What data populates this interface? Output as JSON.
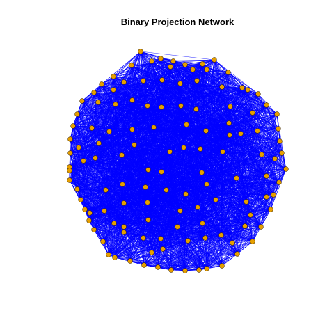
{
  "title": "Binary Projection Network",
  "colors": {
    "background": "#ffffff",
    "edge": "#0000ff",
    "node_fill": "#e69f00",
    "node_stroke": "#4a3000"
  },
  "chart_data": {
    "type": "network",
    "title": "Binary Projection Network",
    "node_count": 110,
    "edge_density": "dense",
    "node_shape": "circle",
    "layout": "force-directed, roughly circular cloud"
  }
}
